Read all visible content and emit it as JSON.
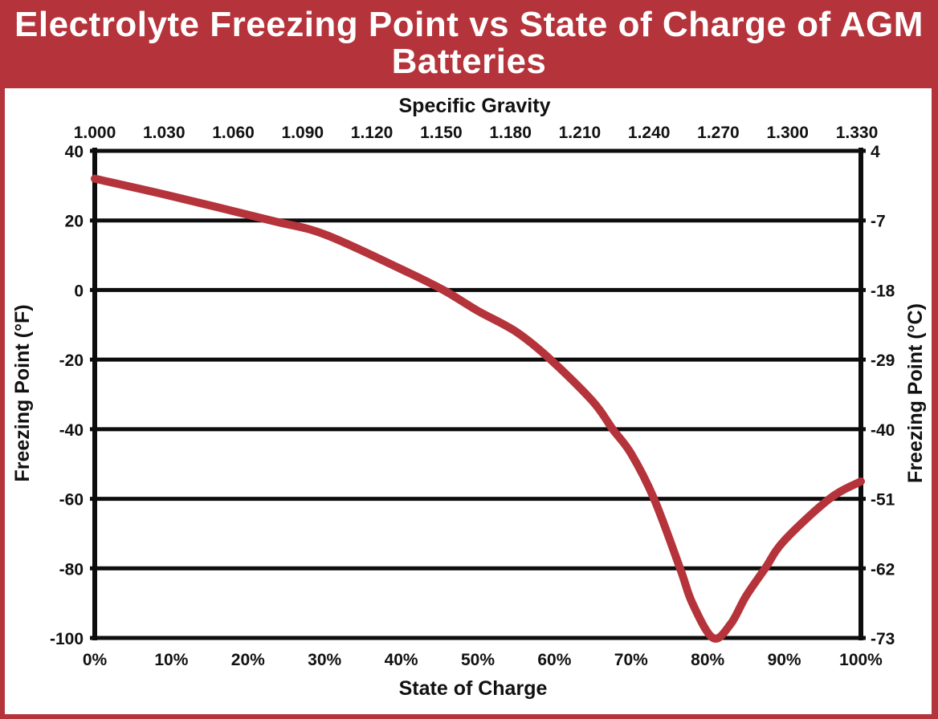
{
  "chart_data": {
    "type": "line",
    "title": "Electrolyte Freezing Point vs State of Charge of AGM Batteries",
    "xlabel": "State of Charge",
    "x2label": "Specific Gravity",
    "ylabel": "Freezing Point (°F)",
    "y2label": "Freezing Point (°C)",
    "xlim": [
      0,
      100
    ],
    "ylim": [
      -100,
      40
    ],
    "x_ticks": [
      "0%",
      "10%",
      "20%",
      "30%",
      "40%",
      "50%",
      "60%",
      "70%",
      "80%",
      "90%",
      "100%"
    ],
    "x2_ticks": [
      "1.000",
      "1.030",
      "1.060",
      "1.090",
      "1.120",
      "1.150",
      "1.180",
      "1.210",
      "1.240",
      "1.270",
      "1.300",
      "1.330"
    ],
    "y_ticks": [
      "40",
      "20",
      "0",
      "-20",
      "-40",
      "-60",
      "-80",
      "-100"
    ],
    "y2_ticks": [
      "4",
      "-7",
      "-18",
      "-29",
      "-40",
      "-51",
      "-62",
      "-73"
    ],
    "grid": true,
    "line_color": "#b5333a",
    "series": [
      {
        "x": [
          0,
          10,
          23,
          30,
          40,
          45.5,
          50,
          55,
          59.5,
          65,
          67.6,
          70,
          73,
          76.4,
          78,
          80.7,
          83,
          85,
          87.5,
          90,
          95.9,
          100
        ],
        "y": [
          32,
          27,
          20,
          16,
          6,
          0,
          -6,
          -12,
          -20,
          -32,
          -40,
          -47,
          -60,
          -80,
          -90,
          -100,
          -96,
          -88,
          -80,
          -72,
          -60,
          -55
        ]
      }
    ]
  }
}
